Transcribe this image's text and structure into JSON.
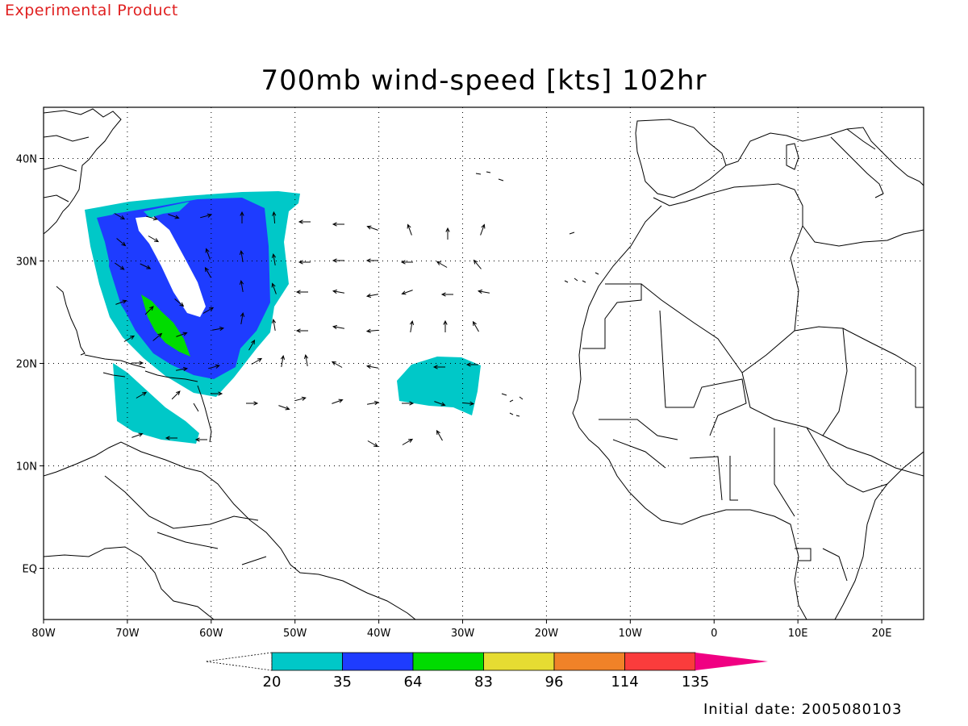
{
  "header": {
    "note": "Experimental Product"
  },
  "map": {
    "title": "700mb wind-speed [kts] 102hr",
    "lon_range": [
      -80,
      25
    ],
    "lat_range": [
      -5,
      45
    ],
    "lon_labels": [
      {
        "lon": -80,
        "text": "80W"
      },
      {
        "lon": -70,
        "text": "70W"
      },
      {
        "lon": -60,
        "text": "60W"
      },
      {
        "lon": -50,
        "text": "50W"
      },
      {
        "lon": -40,
        "text": "40W"
      },
      {
        "lon": -30,
        "text": "30W"
      },
      {
        "lon": -20,
        "text": "20W"
      },
      {
        "lon": -10,
        "text": "10W"
      },
      {
        "lon": 0,
        "text": "0"
      },
      {
        "lon": 10,
        "text": "10E"
      },
      {
        "lon": 20,
        "text": "20E"
      }
    ],
    "lat_labels": [
      {
        "lat": 40,
        "text": "40N"
      },
      {
        "lat": 30,
        "text": "30N"
      },
      {
        "lat": 20,
        "text": "20N"
      },
      {
        "lat": 10,
        "text": "10N"
      },
      {
        "lat": 0,
        "text": "EQ"
      }
    ],
    "grid": "dotted every 10 degrees",
    "wind_speed_fields": [
      {
        "name": "20-35 kts",
        "color": "#00c8c8"
      },
      {
        "name": "35-64 kts",
        "color": "#1e3cff"
      },
      {
        "name": "64-83 kts",
        "color": "#00dc00"
      }
    ]
  },
  "colorbar": {
    "labels": [
      "20",
      "35",
      "64",
      "83",
      "96",
      "114",
      "135"
    ],
    "colors": [
      "#00c8c8",
      "#1e3cff",
      "#00dc00",
      "#e6dc32",
      "#f08228",
      "#fa3c3c",
      "#f00082"
    ]
  },
  "footer": {
    "initial_date": "Initial date: 2005080103"
  }
}
